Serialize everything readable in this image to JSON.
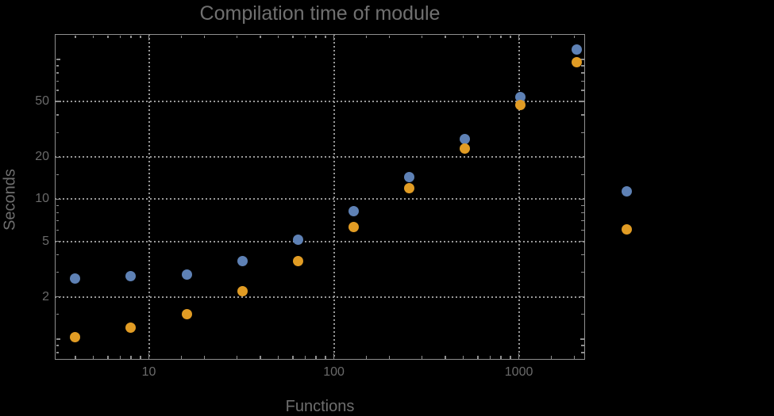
{
  "page": {
    "background": "#000000"
  },
  "chart_data": {
    "type": "scatter",
    "title": "Compilation time of module",
    "xlabel": "Functions",
    "ylabel": "Seconds",
    "x_scale": "log",
    "y_scale": "log",
    "xlim": [
      3.1,
      2280
    ],
    "ylim": [
      0.71,
      152
    ],
    "grid": {
      "style": "dotted",
      "color": "#989898",
      "x_lines": [
        10,
        100,
        1000
      ],
      "y_lines": [
        2,
        5,
        10,
        20,
        50
      ]
    },
    "x_ticks": {
      "major": [
        10,
        100,
        1000
      ],
      "labels": [
        "10",
        "100",
        "1000"
      ],
      "minor": [
        4,
        5,
        6,
        7,
        8,
        9,
        15,
        20,
        30,
        40,
        50,
        60,
        70,
        80,
        90,
        150,
        200,
        300,
        400,
        500,
        600,
        700,
        800,
        900,
        1500,
        2000
      ]
    },
    "y_ticks": {
      "major": [
        2,
        5,
        10,
        20,
        50
      ],
      "labels": [
        "2",
        "5",
        "10",
        "20",
        "50"
      ],
      "submajor": [
        1,
        100
      ],
      "minor": [
        0.8,
        0.9,
        1.5,
        3,
        4,
        6,
        7,
        8,
        9,
        15,
        30,
        40,
        60,
        70,
        80,
        90
      ]
    },
    "x": [
      4,
      8,
      16,
      32,
      64,
      128,
      256,
      512,
      1024,
      2048
    ],
    "series": [
      {
        "name": "series-1-blue",
        "color": "#5e81b5",
        "values": [
          2.7,
          2.8,
          2.9,
          3.6,
          5.1,
          8.2,
          14.4,
          27,
          54,
          118
        ]
      },
      {
        "name": "series-2-orange",
        "color": "#e19c24",
        "values": [
          1.03,
          1.2,
          1.5,
          2.2,
          3.6,
          6.3,
          12,
          23,
          47,
          96
        ]
      }
    ],
    "legend": {
      "position": "right-of-frame",
      "labels_visible": false,
      "markers": [
        {
          "color": "#5e81b5"
        },
        {
          "color": "#e19c24"
        }
      ]
    }
  },
  "style": {
    "frame_color": "#8f8f8f",
    "grid_color": "#989898",
    "text_color": "#6a6a6a",
    "marker_size": 13
  }
}
